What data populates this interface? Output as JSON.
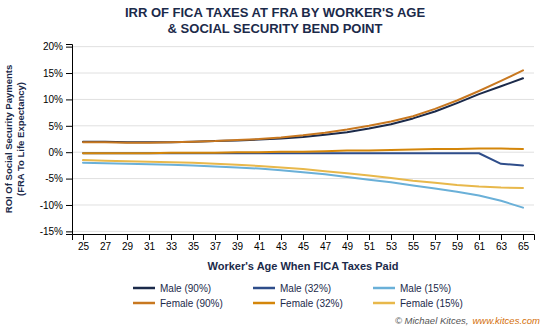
{
  "chart_data": {
    "type": "line",
    "title": "IRR OF FICA TAXES AT FRA BY WORKER'S AGE\n& SOCIAL SECURITY BEND POINT",
    "x_label": "Worker's Age When FICA Taxes Paid",
    "y_label": "ROI Of Social Security Payments\n(FRA To Life Expectancy)",
    "x": [
      25,
      27,
      29,
      31,
      33,
      35,
      37,
      39,
      41,
      43,
      45,
      47,
      49,
      51,
      53,
      55,
      57,
      59,
      61,
      63,
      65
    ],
    "xlim": [
      24,
      66
    ],
    "xticks": [
      25,
      27,
      29,
      31,
      33,
      35,
      37,
      39,
      41,
      43,
      45,
      47,
      49,
      51,
      53,
      55,
      57,
      59,
      61,
      63,
      65
    ],
    "ylim": [
      -0.155,
      0.205
    ],
    "yticks": [
      {
        "value": -0.15,
        "label": "-15%"
      },
      {
        "value": -0.1,
        "label": "-10%"
      },
      {
        "value": -0.05,
        "label": "-5%"
      },
      {
        "value": 0.0,
        "label": "0%"
      },
      {
        "value": 0.05,
        "label": "5%"
      },
      {
        "value": 0.1,
        "label": "10%"
      },
      {
        "value": 0.15,
        "label": "15%"
      },
      {
        "value": 0.2,
        "label": "20%"
      }
    ],
    "grid": true,
    "legend": "bottom",
    "series": [
      {
        "name": "Male (90%)",
        "color": "#1b2a4a",
        "values": [
          0.02,
          0.02,
          0.019,
          0.019,
          0.019,
          0.02,
          0.021,
          0.022,
          0.024,
          0.026,
          0.029,
          0.033,
          0.038,
          0.045,
          0.053,
          0.064,
          0.077,
          0.093,
          0.11,
          0.125,
          0.14
        ]
      },
      {
        "name": "Male (32%)",
        "color": "#2e4d8a",
        "values": [
          -0.002,
          -0.002,
          -0.002,
          -0.002,
          -0.002,
          -0.002,
          -0.002,
          -0.002,
          -0.002,
          -0.002,
          -0.002,
          -0.002,
          -0.002,
          -0.002,
          -0.002,
          -0.002,
          -0.002,
          -0.002,
          -0.002,
          -0.022,
          -0.025
        ]
      },
      {
        "name": "Male (15%)",
        "color": "#6ab0d8",
        "values": [
          -0.02,
          -0.021,
          -0.022,
          -0.023,
          -0.024,
          -0.025,
          -0.027,
          -0.029,
          -0.031,
          -0.034,
          -0.038,
          -0.042,
          -0.047,
          -0.052,
          -0.057,
          -0.063,
          -0.069,
          -0.075,
          -0.082,
          -0.092,
          -0.105
        ]
      },
      {
        "name": "Female (90%)",
        "color": "#c87820",
        "values": [
          0.019,
          0.019,
          0.018,
          0.018,
          0.019,
          0.02,
          0.021,
          0.023,
          0.025,
          0.028,
          0.032,
          0.037,
          0.043,
          0.05,
          0.058,
          0.068,
          0.082,
          0.098,
          0.116,
          0.135,
          0.155
        ]
      },
      {
        "name": "Female (32%)",
        "color": "#d4860a",
        "values": [
          -0.002,
          -0.002,
          -0.002,
          -0.002,
          -0.001,
          -0.001,
          -0.001,
          0.0,
          0.0,
          0.001,
          0.001,
          0.002,
          0.003,
          0.003,
          0.004,
          0.005,
          0.006,
          0.006,
          0.007,
          0.007,
          0.006
        ]
      },
      {
        "name": "Female (15%)",
        "color": "#e8b84b",
        "values": [
          -0.015,
          -0.016,
          -0.017,
          -0.018,
          -0.019,
          -0.02,
          -0.022,
          -0.024,
          -0.026,
          -0.029,
          -0.032,
          -0.036,
          -0.04,
          -0.044,
          -0.049,
          -0.054,
          -0.058,
          -0.062,
          -0.065,
          -0.067,
          -0.068
        ]
      }
    ],
    "annotations": [
      "© Michael Kitces,",
      "www.kitces.com"
    ]
  }
}
